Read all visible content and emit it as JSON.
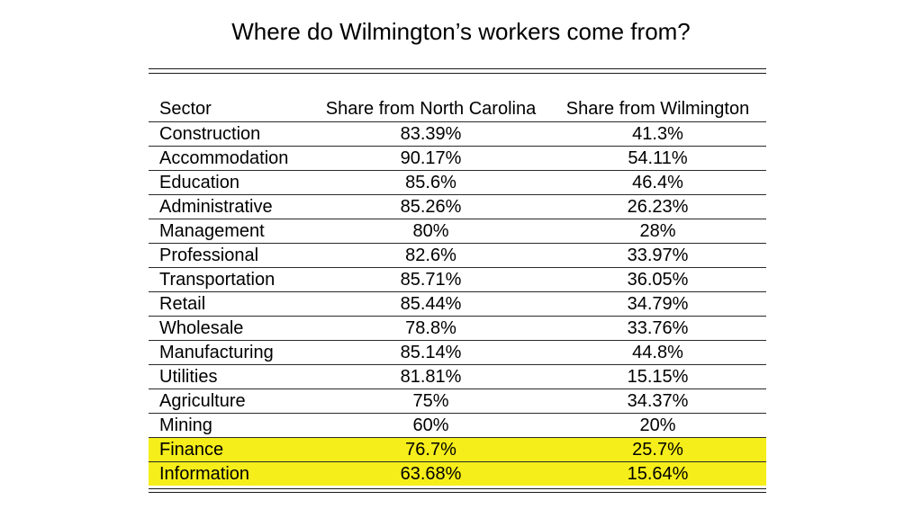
{
  "title": "Where do Wilmington’s workers come from?",
  "table": {
    "headers": [
      "Sector",
      "Share from North Carolina",
      "Share from Wilmington"
    ],
    "rows": [
      {
        "sector": "Construction",
        "nc": "83.39%",
        "wilmington": "41.3%",
        "highlighted": false
      },
      {
        "sector": "Accommodation",
        "nc": "90.17%",
        "wilmington": "54.11%",
        "highlighted": false
      },
      {
        "sector": "Education",
        "nc": "85.6%",
        "wilmington": "46.4%",
        "highlighted": false
      },
      {
        "sector": "Administrative",
        "nc": "85.26%",
        "wilmington": "26.23%",
        "highlighted": false
      },
      {
        "sector": "Management",
        "nc": "80%",
        "wilmington": "28%",
        "highlighted": false
      },
      {
        "sector": "Professional",
        "nc": "82.6%",
        "wilmington": "33.97%",
        "highlighted": false
      },
      {
        "sector": "Transportation",
        "nc": "85.71%",
        "wilmington": "36.05%",
        "highlighted": false
      },
      {
        "sector": "Retail",
        "nc": "85.44%",
        "wilmington": "34.79%",
        "highlighted": false
      },
      {
        "sector": "Wholesale",
        "nc": "78.8%",
        "wilmington": "33.76%",
        "highlighted": false
      },
      {
        "sector": "Manufacturing",
        "nc": "85.14%",
        "wilmington": "44.8%",
        "highlighted": false
      },
      {
        "sector": "Utilities",
        "nc": "81.81%",
        "wilmington": "15.15%",
        "highlighted": false
      },
      {
        "sector": "Agriculture",
        "nc": "75%",
        "wilmington": "34.37%",
        "highlighted": false
      },
      {
        "sector": "Mining",
        "nc": "60%",
        "wilmington": "20%",
        "highlighted": false
      },
      {
        "sector": "Finance",
        "nc": "76.7%",
        "wilmington": "25.7%",
        "highlighted": true
      },
      {
        "sector": "Information",
        "nc": "63.68%",
        "wilmington": "15.64%",
        "highlighted": true
      }
    ]
  },
  "colors": {
    "highlight": "#f5ee1a",
    "rule": "#1a1a1a",
    "text": "#000000",
    "background": "#ffffff"
  }
}
